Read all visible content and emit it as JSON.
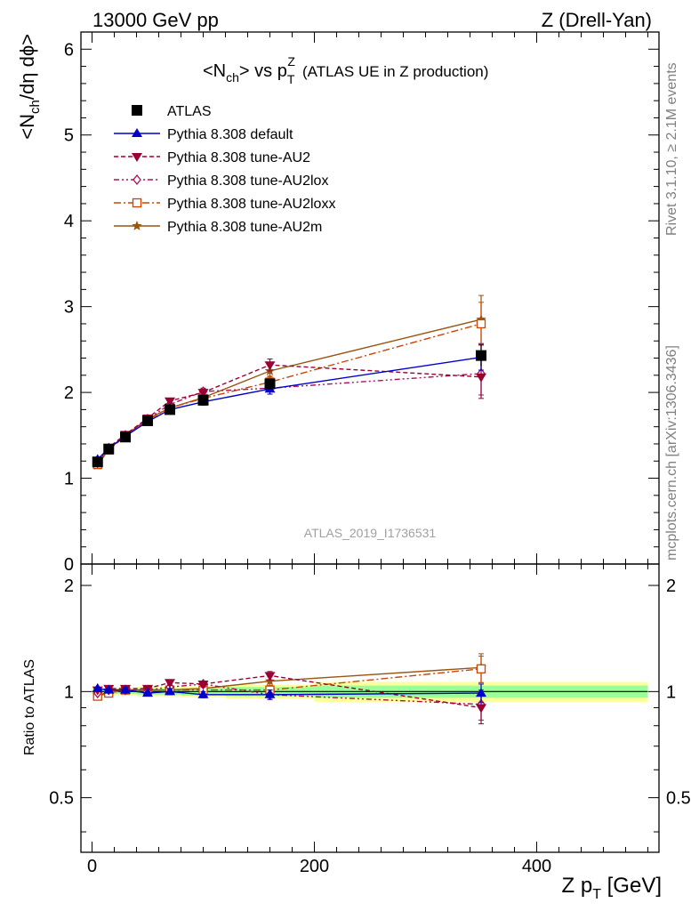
{
  "header": {
    "left": "13000 GeV pp",
    "right": "Z (Drell-Yan)"
  },
  "plot_title": {
    "main": "<N",
    "main_sub": "ch",
    "vs": "> vs p",
    "vs_sup": "Z",
    "vs_sub": "T",
    "rest": "(ATLAS UE in Z production)"
  },
  "side_labels": {
    "rivet": "Rivet 3.1.10, ≥ 2.1M events",
    "mcplots": "mcplots.cern.ch [arXiv:1306.3436]"
  },
  "analysis_id": "ATLAS_2019_I1736531",
  "colors": {
    "atlas": "#000000",
    "default": "#0000cc",
    "au2": "#990033",
    "au2lox": "#aa1155",
    "au2loxx": "#cc4400",
    "au2m": "#995511",
    "band_yellow": "#ffff99",
    "band_green": "#99ff99"
  },
  "chart_data": [
    {
      "type": "line",
      "panel": "main",
      "ylabel": {
        "pre": "<N",
        "sub": "ch",
        "post": "/dη dϕ>"
      },
      "ylim": [
        0,
        6.2
      ],
      "xlim": [
        -10,
        510
      ],
      "y_ticks": [
        0,
        1,
        2,
        3,
        4,
        5,
        6
      ],
      "y_tick_labels": [
        "0",
        "1",
        "2",
        "3",
        "4",
        "5",
        "6"
      ],
      "legend_position": "top-left",
      "x": [
        5,
        15,
        30,
        50,
        70,
        100,
        160,
        350
      ],
      "series": [
        {
          "name": "ATLAS",
          "key": "atlas",
          "style": "data",
          "values": [
            1.19,
            1.34,
            1.48,
            1.67,
            1.8,
            1.91,
            2.1,
            2.43
          ],
          "errors": [
            0.02,
            0.02,
            0.02,
            0.03,
            0.03,
            0.04,
            0.06,
            0.12
          ]
        },
        {
          "name": "Pythia 8.308 default",
          "key": "default",
          "style": "solid",
          "marker": "triangle-up",
          "values": [
            1.22,
            1.35,
            1.49,
            1.66,
            1.8,
            1.89,
            2.04,
            2.41
          ],
          "errors": [
            0.01,
            0.01,
            0.02,
            0.02,
            0.03,
            0.04,
            0.06,
            0.15
          ]
        },
        {
          "name": "Pythia 8.308 tune-AU2",
          "key": "au2",
          "style": "dashed",
          "marker": "triangle-down",
          "values": [
            1.2,
            1.36,
            1.51,
            1.7,
            1.9,
            2.0,
            2.32,
            2.18
          ],
          "errors": [
            0.01,
            0.01,
            0.02,
            0.02,
            0.03,
            0.04,
            0.07,
            0.25
          ]
        },
        {
          "name": "Pythia 8.308 tune-AU2lox",
          "key": "au2lox",
          "style": "dash-dot-dot",
          "marker": "diamond-open",
          "values": [
            1.18,
            1.35,
            1.5,
            1.69,
            1.86,
            2.01,
            2.05,
            2.22
          ],
          "errors": [
            0.01,
            0.01,
            0.02,
            0.02,
            0.03,
            0.04,
            0.07,
            0.25
          ]
        },
        {
          "name": "Pythia 8.308 tune-AU2loxx",
          "key": "au2loxx",
          "style": "dash-dot",
          "marker": "square-open",
          "values": [
            1.16,
            1.33,
            1.49,
            1.68,
            1.82,
            1.93,
            2.12,
            2.8
          ],
          "errors": [
            0.01,
            0.01,
            0.02,
            0.02,
            0.03,
            0.04,
            0.07,
            0.25
          ]
        },
        {
          "name": "Pythia 8.308 tune-AU2m",
          "key": "au2m",
          "style": "solid",
          "marker": "star",
          "values": [
            1.15,
            1.34,
            1.5,
            1.69,
            1.82,
            1.94,
            2.25,
            2.85
          ],
          "errors": [
            0.01,
            0.01,
            0.02,
            0.02,
            0.03,
            0.04,
            0.07,
            0.28
          ]
        }
      ]
    },
    {
      "type": "line",
      "panel": "ratio",
      "ylabel": "Ratio to ATLAS",
      "ylim": [
        0.35,
        2.3
      ],
      "xlim": [
        -10,
        510
      ],
      "xlabel": {
        "pre": "Z p",
        "sub": "T",
        "post": " [GeV]"
      },
      "x_ticks": [
        0,
        200,
        400
      ],
      "x_tick_labels": [
        "0",
        "200",
        "400"
      ],
      "y_ticks": [
        0.5,
        1,
        2
      ],
      "y_tick_labels": [
        "0.5",
        "1",
        "2"
      ],
      "bins": [
        [
          0,
          10
        ],
        [
          10,
          20
        ],
        [
          20,
          40
        ],
        [
          40,
          60
        ],
        [
          60,
          80
        ],
        [
          80,
          120
        ],
        [
          120,
          200
        ],
        [
          200,
          500
        ]
      ],
      "band_yellow": [
        0.025,
        0.025,
        0.025,
        0.03,
        0.03,
        0.035,
        0.045,
        0.065
      ],
      "band_green": [
        0.015,
        0.015,
        0.015,
        0.02,
        0.02,
        0.025,
        0.03,
        0.04
      ],
      "x": [
        5,
        15,
        30,
        50,
        70,
        100,
        160,
        350
      ],
      "series": [
        {
          "key": "default",
          "values": [
            1.02,
            1.01,
            1.01,
            0.99,
            1.0,
            0.98,
            0.98,
            0.99
          ],
          "errors": [
            0.01,
            0.01,
            0.01,
            0.01,
            0.02,
            0.02,
            0.03,
            0.06
          ]
        },
        {
          "key": "au2",
          "values": [
            1.01,
            1.02,
            1.02,
            1.02,
            1.06,
            1.05,
            1.11,
            0.9
          ],
          "errors": [
            0.01,
            0.01,
            0.01,
            0.01,
            0.02,
            0.02,
            0.03,
            0.09
          ]
        },
        {
          "key": "au2lox",
          "values": [
            0.99,
            1.01,
            1.01,
            1.01,
            1.03,
            1.05,
            0.98,
            0.92
          ],
          "errors": [
            0.01,
            0.01,
            0.01,
            0.01,
            0.02,
            0.02,
            0.03,
            0.09
          ]
        },
        {
          "key": "au2loxx",
          "values": [
            0.97,
            0.99,
            1.01,
            1.01,
            1.01,
            1.01,
            1.01,
            1.16
          ],
          "errors": [
            0.01,
            0.01,
            0.01,
            0.01,
            0.02,
            0.02,
            0.03,
            0.1
          ]
        },
        {
          "key": "au2m",
          "values": [
            0.97,
            1.0,
            1.01,
            1.01,
            1.01,
            1.02,
            1.07,
            1.17
          ],
          "errors": [
            0.01,
            0.01,
            0.01,
            0.01,
            0.02,
            0.02,
            0.03,
            0.11
          ]
        }
      ]
    }
  ]
}
